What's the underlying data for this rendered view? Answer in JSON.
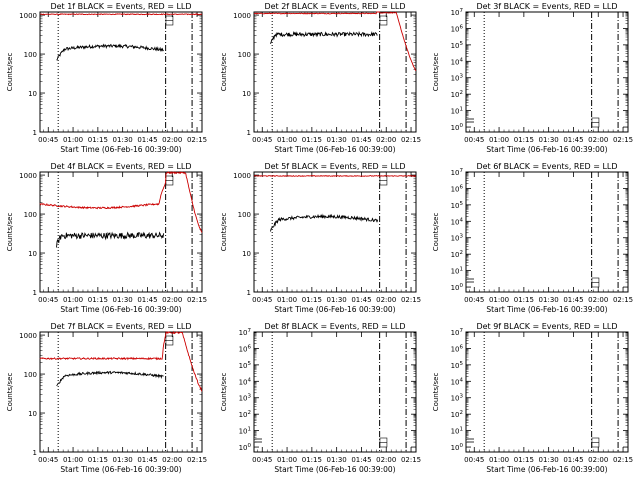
{
  "start_time_label": "Start Time (06-Feb-16 00:39:00)",
  "y_axis_label": "Counts/sec",
  "x_ticks": [
    "00:45",
    "01:00",
    "01:15",
    "01:30",
    "01:45",
    "02:00",
    "02:15"
  ],
  "colors": {
    "events": "#000000",
    "lld": "#cc0000"
  },
  "chart_data": [
    {
      "type": "line",
      "title": "Det 1f BLACK = Events, RED = LLD",
      "yscale": "log",
      "ylim": [
        1,
        1200
      ],
      "y_ticks": [
        "1",
        "10",
        "100",
        "1000"
      ],
      "x_range_minutes": [
        40,
        138
      ],
      "markers": {
        "dotted": 51,
        "dashdot1": 116,
        "dashdot2": 132,
        "label_minute": 118
      },
      "series": [
        {
          "name": "Events",
          "color": "#000000",
          "start": 50,
          "end": 115,
          "level": 140,
          "rise": 5,
          "noise": 0.04,
          "shape": "hump"
        },
        {
          "name": "LLD",
          "color": "#cc0000",
          "start": 40,
          "end": 138,
          "level": 1050,
          "noise": 0.01,
          "shape": "flat"
        }
      ]
    },
    {
      "type": "line",
      "title": "Det 2f BLACK = Events, RED = LLD",
      "yscale": "log",
      "ylim": [
        1,
        1200
      ],
      "y_ticks": [
        "1",
        "10",
        "100",
        "1000"
      ],
      "x_range_minutes": [
        40,
        138
      ],
      "markers": {
        "dotted": 51,
        "dashdot1": 116,
        "dashdot2": 132,
        "label_minute": 118
      },
      "series": [
        {
          "name": "Events",
          "color": "#000000",
          "start": 50,
          "end": 115,
          "level": 320,
          "rise": 3,
          "noise": 0.05,
          "shape": "flat"
        },
        {
          "name": "LLD",
          "color": "#cc0000",
          "start": 40,
          "end": 138,
          "level": 1100,
          "noise": 0.01,
          "shape": "flat_bump"
        }
      ]
    },
    {
      "type": "line",
      "title": "Det 3f BLACK = Events, RED = LLD",
      "yscale": "log",
      "ylim": [
        0.5,
        10000000
      ],
      "y_ticks": [
        "10^0",
        "10^1",
        "10^2",
        "10^3",
        "10^4",
        "10^5",
        "10^6",
        "10^7"
      ],
      "x_range_minutes": [
        40,
        138
      ],
      "markers": {
        "dotted": 51,
        "dashdot1": 116,
        "dashdot2": 132,
        "label_minute": 118
      },
      "series": []
    },
    {
      "type": "line",
      "title": "Det 4f BLACK = Events, RED = LLD",
      "yscale": "log",
      "ylim": [
        1,
        1200
      ],
      "y_ticks": [
        "1",
        "10",
        "100",
        "1000"
      ],
      "x_range_minutes": [
        40,
        138
      ],
      "markers": {
        "dotted": 51,
        "dashdot1": 116,
        "dashdot2": 132,
        "label_minute": 118
      },
      "series": [
        {
          "name": "Events",
          "color": "#000000",
          "start": 50,
          "end": 115,
          "level": 28,
          "rise": 3,
          "noise": 0.08,
          "shape": "flat"
        },
        {
          "name": "LLD",
          "color": "#cc0000",
          "start": 40,
          "end": 138,
          "level": 180,
          "noise": 0.02,
          "shape": "wave_bump"
        }
      ]
    },
    {
      "type": "line",
      "title": "Det 5f BLACK = Events, RED = LLD",
      "yscale": "log",
      "ylim": [
        1,
        1200
      ],
      "y_ticks": [
        "1",
        "10",
        "100",
        "1000"
      ],
      "x_range_minutes": [
        40,
        138
      ],
      "markers": {
        "dotted": 51,
        "dashdot1": 116,
        "dashdot2": 132,
        "label_minute": 118
      },
      "series": [
        {
          "name": "Events",
          "color": "#000000",
          "start": 50,
          "end": 115,
          "level": 75,
          "rise": 5,
          "noise": 0.04,
          "shape": "hump"
        },
        {
          "name": "LLD",
          "color": "#cc0000",
          "start": 40,
          "end": 138,
          "level": 950,
          "noise": 0.01,
          "shape": "flat"
        }
      ]
    },
    {
      "type": "line",
      "title": "Det 6f BLACK = Events, RED = LLD",
      "yscale": "log",
      "ylim": [
        0.5,
        10000000
      ],
      "y_ticks": [
        "10^0",
        "10^1",
        "10^2",
        "10^3",
        "10^4",
        "10^5",
        "10^6",
        "10^7"
      ],
      "x_range_minutes": [
        40,
        138
      ],
      "markers": {
        "dotted": 51,
        "dashdot1": 116,
        "dashdot2": 132,
        "label_minute": 118
      },
      "series": []
    },
    {
      "type": "line",
      "title": "Det 7f BLACK = Events, RED = LLD",
      "yscale": "log",
      "ylim": [
        1,
        1200
      ],
      "y_ticks": [
        "1",
        "10",
        "100",
        "1000"
      ],
      "x_range_minutes": [
        40,
        138
      ],
      "markers": {
        "dotted": 51,
        "dashdot1": 116,
        "dashdot2": 132,
        "label_minute": 118
      },
      "series": [
        {
          "name": "Events",
          "color": "#000000",
          "start": 50,
          "end": 115,
          "level": 95,
          "rise": 5,
          "noise": 0.03,
          "shape": "hump"
        },
        {
          "name": "LLD",
          "color": "#cc0000",
          "start": 40,
          "end": 138,
          "level": 250,
          "noise": 0.02,
          "shape": "flat_bump"
        }
      ]
    },
    {
      "type": "line",
      "title": "Det 8f BLACK = Events, RED = LLD",
      "yscale": "log",
      "ylim": [
        0.5,
        10000000
      ],
      "y_ticks": [
        "10^0",
        "10^1",
        "10^2",
        "10^3",
        "10^4",
        "10^5",
        "10^6",
        "10^7"
      ],
      "x_range_minutes": [
        40,
        138
      ],
      "markers": {
        "dotted": 51,
        "dashdot1": 116,
        "dashdot2": 132,
        "label_minute": 118
      },
      "series": []
    },
    {
      "type": "line",
      "title": "Det 9f BLACK = Events, RED = LLD",
      "yscale": "log",
      "ylim": [
        0.5,
        10000000
      ],
      "y_ticks": [
        "10^0",
        "10^1",
        "10^2",
        "10^3",
        "10^4",
        "10^5",
        "10^6",
        "10^7"
      ],
      "x_range_minutes": [
        40,
        138
      ],
      "markers": {
        "dotted": 51,
        "dashdot1": 116,
        "dashdot2": 132,
        "label_minute": 118
      },
      "series": []
    }
  ]
}
